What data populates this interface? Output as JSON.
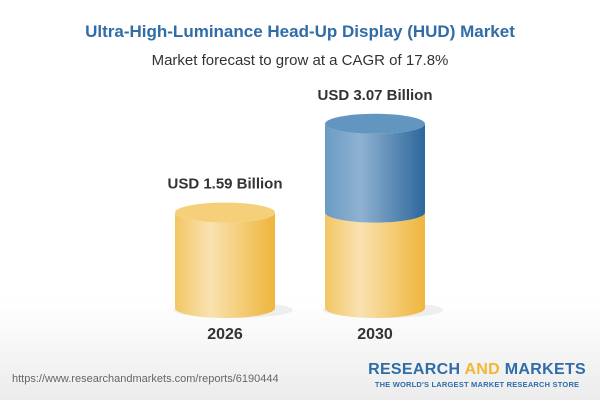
{
  "chart_data": {
    "type": "bar",
    "title": "Ultra-High-Luminance Head-Up Display (HUD) Market",
    "subtitle": "Market forecast to grow at a CAGR of 17.8%",
    "categories": [
      "2026",
      "2030"
    ],
    "values": [
      1.59,
      3.07
    ],
    "data_labels": [
      "USD 1.59 Billion",
      "USD 3.07 Billion"
    ],
    "unit": "USD Billion",
    "colors": {
      "base": "#f2c15c",
      "growth": "#4f86b5",
      "title": "#2f6ca8"
    }
  },
  "footer": {
    "url": "https://www.researchandmarkets.com/reports/6190444",
    "logo_part1": "RESEARCH ",
    "logo_part2": "AND",
    "logo_part3": " MARKETS",
    "tagline": "THE WORLD'S LARGEST MARKET RESEARCH STORE"
  }
}
